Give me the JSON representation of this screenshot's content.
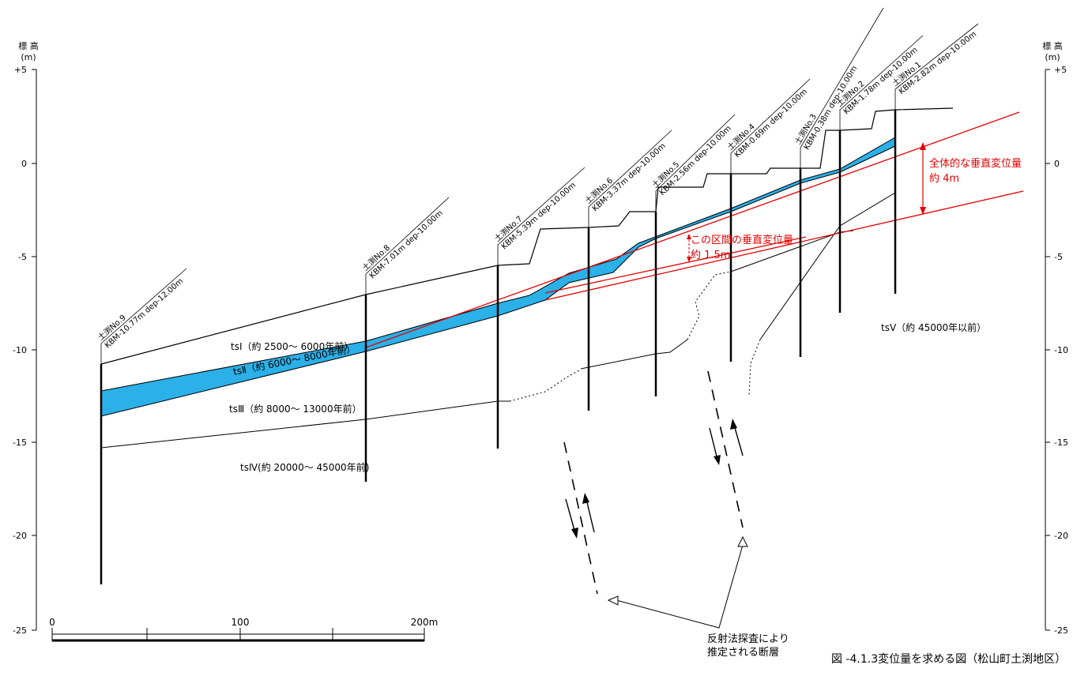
{
  "axes": {
    "unit_label_a": "標 高",
    "unit_label_b": "(m)",
    "ticks": [
      "+5",
      "0",
      "-5",
      "-10",
      "-15",
      "-20",
      "-25"
    ]
  },
  "scale_bar": {
    "labels": [
      "0",
      "100",
      "200m"
    ]
  },
  "boreholes": [
    {
      "label": "土渕No.9",
      "detail": "KBM-10.77m dep-12.00m"
    },
    {
      "label": "土渕No.8",
      "detail": "KBM-7.01m dep-10.00m"
    },
    {
      "label": "土渕No.7",
      "detail": "KBM-5.39m dep-10.00m"
    },
    {
      "label": "土渕No.6",
      "detail": "KBM-3.37m dep-10.00m"
    },
    {
      "label": "土渕No.5",
      "detail": "KBM-2.56m dep-10.00m"
    },
    {
      "label": "土渕No.4",
      "detail": "KBM-0.69m dep-10.00m"
    },
    {
      "label": "土渕No.3",
      "detail": "KBM-0.38m dep-10.00m"
    },
    {
      "label": "土渕No.2",
      "detail": "KBM-1.78m dep-10.00m"
    },
    {
      "label": "土渕No.1",
      "detail": "KBM-2.82m dep-10.00m"
    }
  ],
  "layers": [
    {
      "label": "tsⅠ（約 2500～ 6000年前）"
    },
    {
      "label": "tsⅡ（約 6000～ 8000年前）"
    },
    {
      "label": "tsⅢ（約 8000～ 13000年前）"
    },
    {
      "label": "tsⅣ(約 20000～ 45000年前)"
    },
    {
      "label": "tsⅤ（約 45000年以前）"
    }
  ],
  "annotations": {
    "overall_line1": "全体的な垂直変位量",
    "overall_line2": "約 4m",
    "section_line1": "この区間の垂直変位量",
    "section_line2": "約 1.5m",
    "fault_line1": "反射法探査により",
    "fault_line2": "推定される断層"
  },
  "caption": "図 -4.1.3変位量を求める図（松山町土渕地区）",
  "colors": {
    "layer_ts2": "#2bb0e8",
    "displacement": "#e60000",
    "ink": "#000000"
  }
}
